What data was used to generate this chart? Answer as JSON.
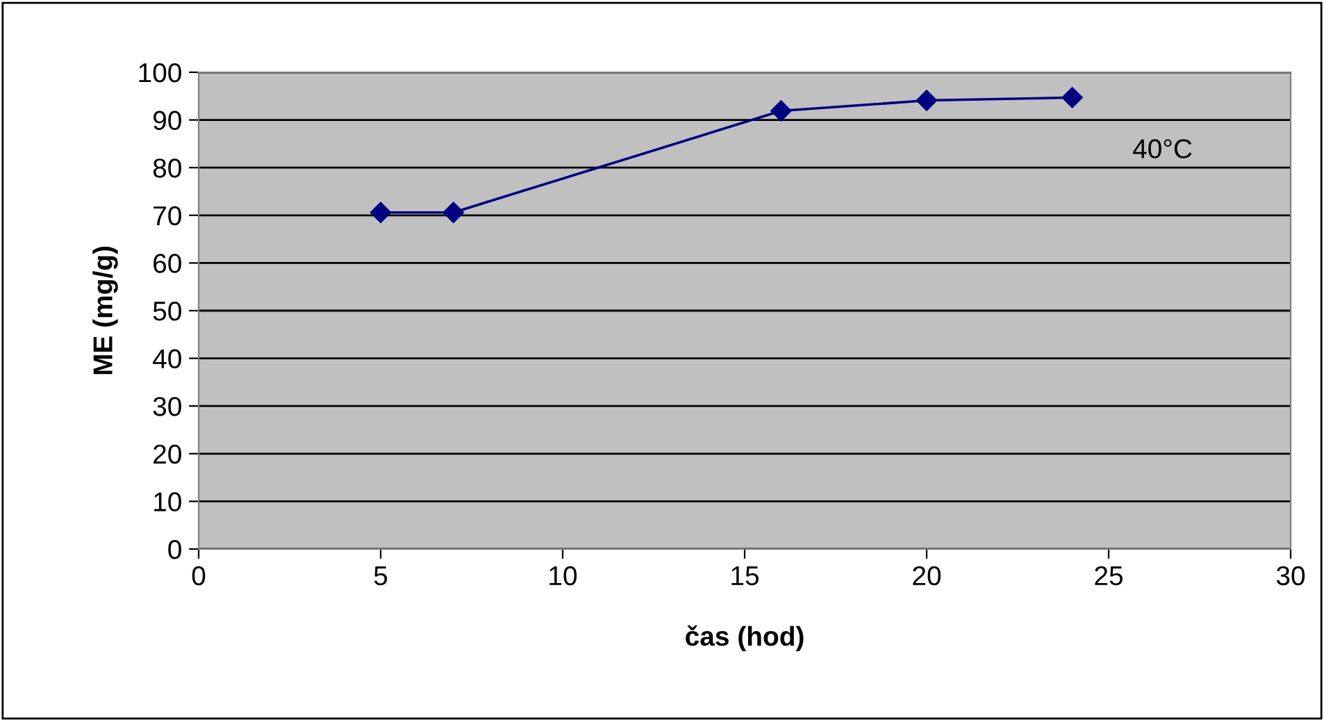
{
  "chart_data": {
    "type": "line",
    "xlabel": "čas (hod)",
    "ylabel": "ME (mg/g)",
    "annotations": [
      "40°C"
    ],
    "x": [
      5,
      7,
      16,
      20,
      24
    ],
    "series": [
      {
        "color": "#000080",
        "values": [
          70.6,
          70.6,
          91.9,
          94.1,
          94.7
        ]
      }
    ],
    "xlim": [
      0,
      30
    ],
    "xticks": [
      0,
      5,
      10,
      15,
      20,
      25,
      30
    ],
    "ylim": [
      0,
      100
    ],
    "yticks": [
      0,
      10,
      20,
      30,
      40,
      50,
      60,
      70,
      80,
      90,
      100
    ],
    "grid": "y",
    "marker": "diamond",
    "line_style": "solid",
    "legend": false
  }
}
